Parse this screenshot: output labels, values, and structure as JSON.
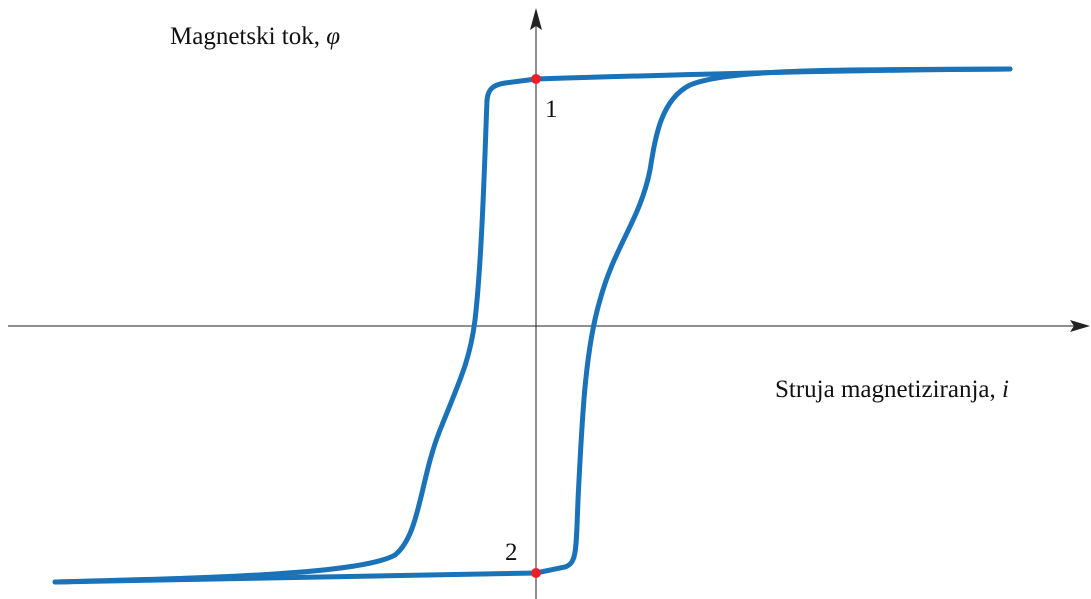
{
  "y_axis_label": {
    "text": "Magnetski tok, ",
    "symbol": "φ"
  },
  "x_axis_label": {
    "text": "Struja magnetiziranja, ",
    "symbol": "i"
  },
  "points": [
    {
      "label": "1"
    },
    {
      "label": "2"
    }
  ]
}
